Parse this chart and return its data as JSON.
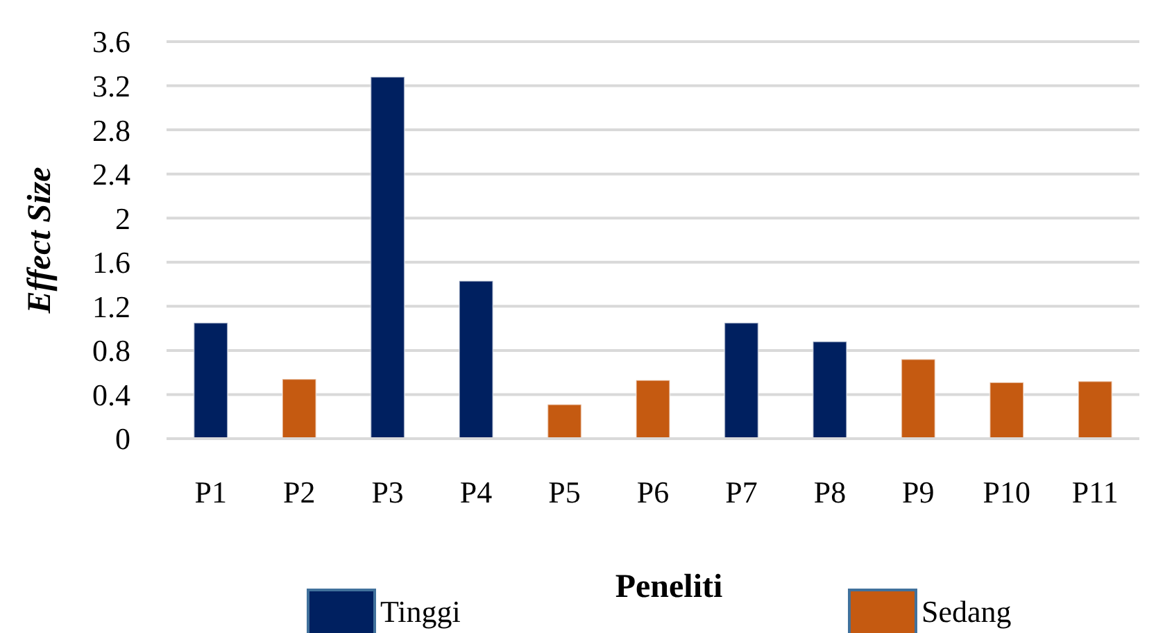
{
  "chart_data": {
    "type": "bar",
    "xlabel": "Peneliti",
    "ylabel": "Effect Size",
    "categories": [
      "P1",
      "P2",
      "P3",
      "P4",
      "P5",
      "P6",
      "P7",
      "P8",
      "P9",
      "P10",
      "P11"
    ],
    "series": [
      {
        "name": "Tinggi",
        "color": "#002060",
        "values": [
          1.05,
          null,
          3.28,
          1.43,
          null,
          null,
          1.05,
          0.88,
          null,
          null,
          null
        ]
      },
      {
        "name": "Sedang",
        "color": "#c55a11",
        "values": [
          null,
          0.54,
          null,
          null,
          0.31,
          0.53,
          null,
          null,
          0.72,
          0.51,
          0.52
        ]
      }
    ],
    "ylim": [
      0,
      3.6
    ],
    "yticks": [
      0,
      0.4,
      0.8,
      1.2,
      1.6,
      2,
      2.4,
      2.8,
      3.2,
      3.6
    ],
    "grid": "y",
    "legend": "bottom"
  }
}
